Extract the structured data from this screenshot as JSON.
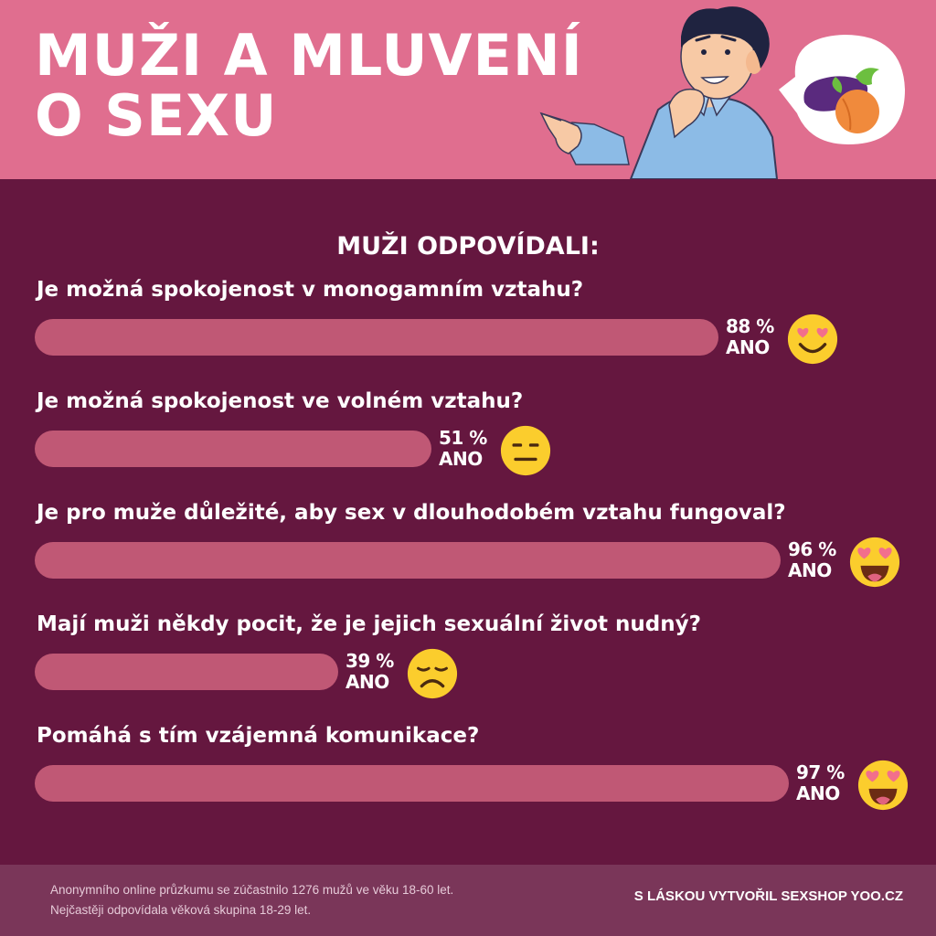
{
  "header": {
    "title_line1": "MUŽI A MLUVENÍ",
    "title_line2": "O SEXU"
  },
  "section_heading": "MUŽI ODPOVÍDALI:",
  "chart_data": {
    "type": "bar",
    "orientation": "horizontal",
    "xlim": [
      0,
      100
    ],
    "grid": false,
    "categories": [
      "Je možná spokojenost v monogamním vztahu?",
      "Je možná spokojenost ve volném vztahu?",
      "Je pro muže důležité, aby sex v dlouhodobém vztahu fungoval?",
      "Mají muži někdy pocit, že je jejich sexuální život nudný?",
      "Pomáhá s tím vzájemná komunikace?"
    ],
    "values": [
      88,
      51,
      96,
      39,
      97
    ],
    "value_labels": [
      "88 %",
      "51 %",
      "96 %",
      "39 %",
      "97 %"
    ],
    "answer_labels": [
      "ANO",
      "ANO",
      "ANO",
      "ANO",
      "ANO"
    ],
    "emojis": [
      "smiling-heart-eyes-emoji",
      "neutral-face-emoji",
      "star-struck-heart-eyes-emoji",
      "disappointed-face-emoji",
      "star-struck-heart-eyes-emoji"
    ],
    "bar_color": "#c05875"
  },
  "footer": {
    "note_line1": "Anonymního online průzkumu se zúčastnilo 1276 mužů ve věku 18-60 let.",
    "note_line2": "Nejčastěji odpovídala věková skupina 18-29 let.",
    "credit": "S LÁSKOU VYTVOŘIL SEXSHOP YOO.CZ"
  },
  "colors": {
    "header_bg": "#e06e8f",
    "main_bg": "#65173f",
    "footer_bg": "#7a3659",
    "emoji_yellow": "#fbcd2d",
    "heart": "#f26f8c"
  }
}
